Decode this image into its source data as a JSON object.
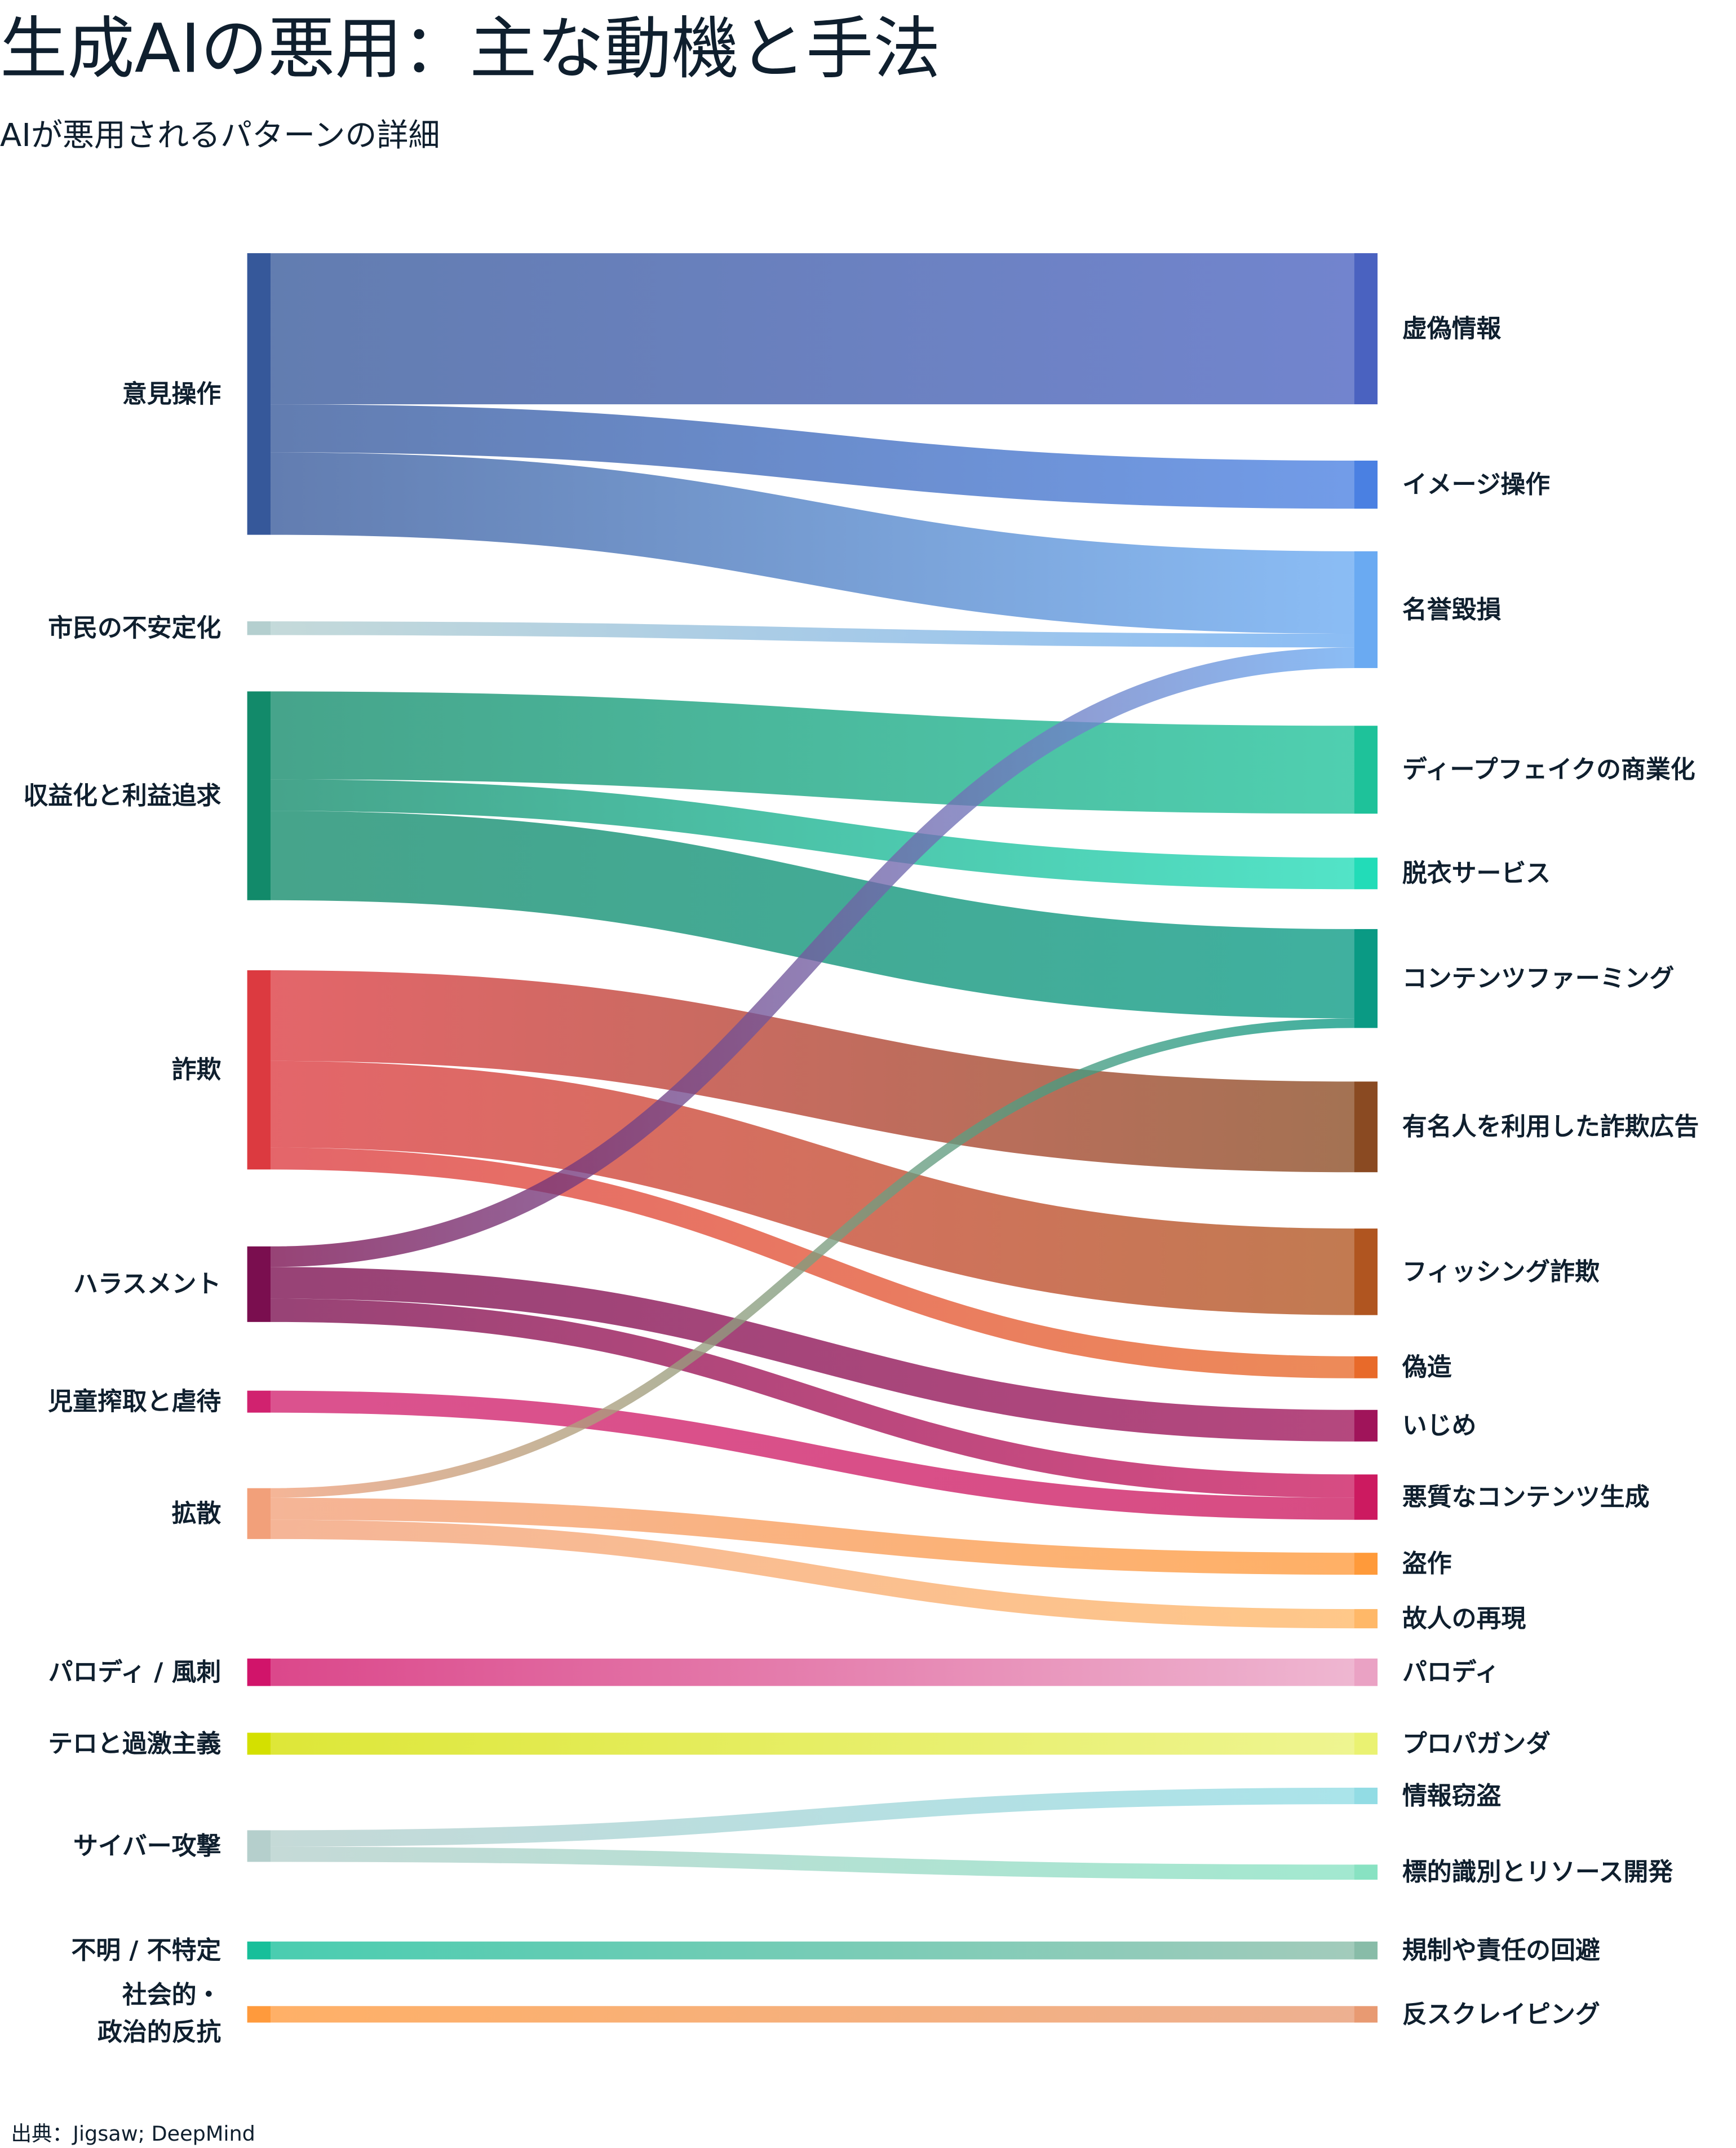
{
  "chart_data": {
    "type": "sankey",
    "title": "生成AIの悪用：主な動機と手法",
    "subtitle": "AIが悪用されるパターンの詳細",
    "source": "出典：Jigsaw; DeepMind",
    "nodes": [
      {
        "id": "s0",
        "side": "left",
        "label": "意見操作",
        "color": "#36589a"
      },
      {
        "id": "s1",
        "side": "left",
        "label": "市民の不安定化",
        "color": "#b4cfcf"
      },
      {
        "id": "s2",
        "side": "left",
        "label": "収益化と利益追求",
        "color": "#128a6a"
      },
      {
        "id": "s3",
        "side": "left",
        "label": "詐欺",
        "color": "#dc3a40"
      },
      {
        "id": "s4",
        "side": "left",
        "label": "ハラスメント",
        "color": "#7a0e4f"
      },
      {
        "id": "s5",
        "side": "left",
        "label": "児童搾取と虐待",
        "color": "#d1226f"
      },
      {
        "id": "s6",
        "side": "left",
        "label": "拡散",
        "color": "#f2a07a"
      },
      {
        "id": "s7",
        "side": "left",
        "label": "パロディ / 風刺",
        "color": "#d1146a"
      },
      {
        "id": "s8",
        "side": "left",
        "label": "テロと過激主義",
        "color": "#d4e000"
      },
      {
        "id": "s9",
        "side": "left",
        "label": "サイバー攻撃",
        "color": "#b5cfcc"
      },
      {
        "id": "s10",
        "side": "left",
        "label": "不明 / 不特定",
        "color": "#17bf9a"
      },
      {
        "id": "s11",
        "side": "left",
        "label": "社会的・政治的反抗",
        "label_lines": [
          "社会的・",
          "政治的反抗"
        ],
        "color": "#ff9a3c"
      },
      {
        "id": "t0",
        "side": "right",
        "label": "虚偽情報",
        "color": "#4a62c0"
      },
      {
        "id": "t1",
        "side": "right",
        "label": "イメージ操作",
        "color": "#4a80e2"
      },
      {
        "id": "t2",
        "side": "right",
        "label": "名誉毀損",
        "color": "#6aaaf2"
      },
      {
        "id": "t3",
        "side": "right",
        "label": "ディープフェイクの商業化",
        "color": "#1ec29a"
      },
      {
        "id": "t4",
        "side": "right",
        "label": "脱衣サービス",
        "color": "#22dcb8"
      },
      {
        "id": "t5",
        "side": "right",
        "label": "コンテンツファーミング",
        "color": "#0a9a84"
      },
      {
        "id": "t6",
        "side": "right",
        "label": "有名人を利用した詐欺広告",
        "color": "#8a4a22"
      },
      {
        "id": "t7",
        "side": "right",
        "label": "フィッシング詐欺",
        "color": "#b05520"
      },
      {
        "id": "t8",
        "side": "right",
        "label": "偽造",
        "color": "#e86a2a"
      },
      {
        "id": "t9",
        "side": "right",
        "label": "いじめ",
        "color": "#a0145a"
      },
      {
        "id": "t10",
        "side": "right",
        "label": "悪質なコンテンツ生成",
        "color": "#cc1a60"
      },
      {
        "id": "t11",
        "side": "right",
        "label": "盗作",
        "color": "#ff9a3a"
      },
      {
        "id": "t12",
        "side": "right",
        "label": "故人の再現",
        "color": "#ffb868"
      },
      {
        "id": "t13",
        "side": "right",
        "label": "パロディ",
        "color": "#eaa2c4"
      },
      {
        "id": "t14",
        "side": "right",
        "label": "プロパガンダ",
        "color": "#eaf272"
      },
      {
        "id": "t15",
        "side": "right",
        "label": "情報窃盗",
        "color": "#92dce4"
      },
      {
        "id": "t16",
        "side": "right",
        "label": "標的識別とリソース開発",
        "color": "#88e2c2"
      },
      {
        "id": "t17",
        "side": "right",
        "label": "規制や責任の回避",
        "color": "#88bca8"
      },
      {
        "id": "t18",
        "side": "right",
        "label": "反スクレイピング",
        "color": "#e89a72"
      }
    ],
    "links": [
      {
        "source": "s0",
        "target": "t0",
        "value": 110
      },
      {
        "source": "s0",
        "target": "t1",
        "value": 35
      },
      {
        "source": "s0",
        "target": "t2",
        "value": 60
      },
      {
        "source": "s1",
        "target": "t2",
        "value": 10
      },
      {
        "source": "s2",
        "target": "t3",
        "value": 64
      },
      {
        "source": "s2",
        "target": "t4",
        "value": 23
      },
      {
        "source": "s2",
        "target": "t5",
        "value": 65
      },
      {
        "source": "s3",
        "target": "t6",
        "value": 66
      },
      {
        "source": "s3",
        "target": "t7",
        "value": 63
      },
      {
        "source": "s3",
        "target": "t8",
        "value": 16
      },
      {
        "source": "s4",
        "target": "t2",
        "value": 15
      },
      {
        "source": "s4",
        "target": "t9",
        "value": 23
      },
      {
        "source": "s4",
        "target": "t10",
        "value": 17
      },
      {
        "source": "s5",
        "target": "t10",
        "value": 16
      },
      {
        "source": "s6",
        "target": "t5",
        "value": 7
      },
      {
        "source": "s6",
        "target": "t11",
        "value": 16
      },
      {
        "source": "s6",
        "target": "t12",
        "value": 14
      },
      {
        "source": "s7",
        "target": "t13",
        "value": 20
      },
      {
        "source": "s8",
        "target": "t14",
        "value": 16
      },
      {
        "source": "s9",
        "target": "t15",
        "value": 12
      },
      {
        "source": "s9",
        "target": "t16",
        "value": 11
      },
      {
        "source": "s10",
        "target": "t17",
        "value": 13
      },
      {
        "source": "s11",
        "target": "t18",
        "value": 12
      }
    ]
  }
}
